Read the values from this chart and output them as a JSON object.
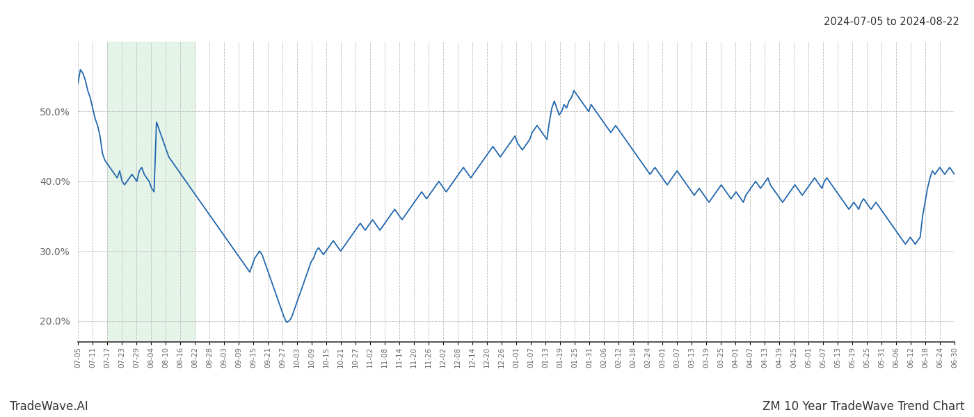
{
  "title_top_right": "2024-07-05 to 2024-08-22",
  "bottom_left": "TradeWave.AI",
  "bottom_right": "ZM 10 Year TradeWave Trend Chart",
  "line_color": "#2166ac",
  "shade_color": "#d4edda",
  "shade_alpha": 0.6,
  "ylim": [
    17.0,
    60.0
  ],
  "yticks": [
    20.0,
    30.0,
    40.0,
    50.0
  ],
  "background_color": "#ffffff",
  "grid_color": "#bbbbbb",
  "x_labels": [
    "07-05",
    "07-11",
    "07-17",
    "07-23",
    "07-29",
    "08-04",
    "08-10",
    "08-16",
    "08-22",
    "08-28",
    "09-03",
    "09-09",
    "09-15",
    "09-21",
    "09-27",
    "10-03",
    "10-09",
    "10-15",
    "10-21",
    "10-27",
    "11-02",
    "11-08",
    "11-14",
    "11-20",
    "11-26",
    "12-02",
    "12-08",
    "12-14",
    "12-20",
    "12-26",
    "01-01",
    "01-07",
    "01-13",
    "01-19",
    "01-25",
    "01-31",
    "02-06",
    "02-12",
    "02-18",
    "02-24",
    "03-01",
    "03-07",
    "03-13",
    "03-19",
    "03-25",
    "04-01",
    "04-07",
    "04-13",
    "04-19",
    "04-25",
    "05-01",
    "05-07",
    "05-13",
    "05-19",
    "05-25",
    "05-31",
    "06-06",
    "06-12",
    "06-18",
    "06-24",
    "06-30"
  ],
  "shade_start_label": "07-17",
  "shade_end_label": "08-22",
  "y_values": [
    54.0,
    56.0,
    55.5,
    54.5,
    53.0,
    52.0,
    50.5,
    49.0,
    48.0,
    46.5,
    44.0,
    43.0,
    42.5,
    42.0,
    41.5,
    41.0,
    40.5,
    41.5,
    40.0,
    39.5,
    40.0,
    40.5,
    41.0,
    40.5,
    40.0,
    41.5,
    42.0,
    41.0,
    40.5,
    40.0,
    39.0,
    38.5,
    48.5,
    47.5,
    46.5,
    45.5,
    44.5,
    43.5,
    43.0,
    42.5,
    42.0,
    41.5,
    41.0,
    40.5,
    40.0,
    39.5,
    39.0,
    38.5,
    38.0,
    37.5,
    37.0,
    36.5,
    36.0,
    35.5,
    35.0,
    34.5,
    34.0,
    33.5,
    33.0,
    32.5,
    32.0,
    31.5,
    31.0,
    30.5,
    30.0,
    29.5,
    29.0,
    28.5,
    28.0,
    27.5,
    27.0,
    28.0,
    29.0,
    29.5,
    30.0,
    29.5,
    28.5,
    27.5,
    26.5,
    25.5,
    24.5,
    23.5,
    22.5,
    21.5,
    20.5,
    19.8,
    20.0,
    20.5,
    21.5,
    22.5,
    23.5,
    24.5,
    25.5,
    26.5,
    27.5,
    28.5,
    29.0,
    30.0,
    30.5,
    30.0,
    29.5,
    30.0,
    30.5,
    31.0,
    31.5,
    31.0,
    30.5,
    30.0,
    30.5,
    31.0,
    31.5,
    32.0,
    32.5,
    33.0,
    33.5,
    34.0,
    33.5,
    33.0,
    33.5,
    34.0,
    34.5,
    34.0,
    33.5,
    33.0,
    33.5,
    34.0,
    34.5,
    35.0,
    35.5,
    36.0,
    35.5,
    35.0,
    34.5,
    35.0,
    35.5,
    36.0,
    36.5,
    37.0,
    37.5,
    38.0,
    38.5,
    38.0,
    37.5,
    38.0,
    38.5,
    39.0,
    39.5,
    40.0,
    39.5,
    39.0,
    38.5,
    39.0,
    39.5,
    40.0,
    40.5,
    41.0,
    41.5,
    42.0,
    41.5,
    41.0,
    40.5,
    41.0,
    41.5,
    42.0,
    42.5,
    43.0,
    43.5,
    44.0,
    44.5,
    45.0,
    44.5,
    44.0,
    43.5,
    44.0,
    44.5,
    45.0,
    45.5,
    46.0,
    46.5,
    45.5,
    45.0,
    44.5,
    45.0,
    45.5,
    46.0,
    47.0,
    47.5,
    48.0,
    47.5,
    47.0,
    46.5,
    46.0,
    48.5,
    50.5,
    51.5,
    50.5,
    49.5,
    50.0,
    51.0,
    50.5,
    51.5,
    52.0,
    53.0,
    52.5,
    52.0,
    51.5,
    51.0,
    50.5,
    50.0,
    51.0,
    50.5,
    50.0,
    49.5,
    49.0,
    48.5,
    48.0,
    47.5,
    47.0,
    47.5,
    48.0,
    47.5,
    47.0,
    46.5,
    46.0,
    45.5,
    45.0,
    44.5,
    44.0,
    43.5,
    43.0,
    42.5,
    42.0,
    41.5,
    41.0,
    41.5,
    42.0,
    41.5,
    41.0,
    40.5,
    40.0,
    39.5,
    40.0,
    40.5,
    41.0,
    41.5,
    41.0,
    40.5,
    40.0,
    39.5,
    39.0,
    38.5,
    38.0,
    38.5,
    39.0,
    38.5,
    38.0,
    37.5,
    37.0,
    37.5,
    38.0,
    38.5,
    39.0,
    39.5,
    39.0,
    38.5,
    38.0,
    37.5,
    38.0,
    38.5,
    38.0,
    37.5,
    37.0,
    38.0,
    38.5,
    39.0,
    39.5,
    40.0,
    39.5,
    39.0,
    39.5,
    40.0,
    40.5,
    39.5,
    39.0,
    38.5,
    38.0,
    37.5,
    37.0,
    37.5,
    38.0,
    38.5,
    39.0,
    39.5,
    39.0,
    38.5,
    38.0,
    38.5,
    39.0,
    39.5,
    40.0,
    40.5,
    40.0,
    39.5,
    39.0,
    40.0,
    40.5,
    40.0,
    39.5,
    39.0,
    38.5,
    38.0,
    37.5,
    37.0,
    36.5,
    36.0,
    36.5,
    37.0,
    36.5,
    36.0,
    37.0,
    37.5,
    37.0,
    36.5,
    36.0,
    36.5,
    37.0,
    36.5,
    36.0,
    35.5,
    35.0,
    34.5,
    34.0,
    33.5,
    33.0,
    32.5,
    32.0,
    31.5,
    31.0,
    31.5,
    32.0,
    31.5,
    31.0,
    31.5,
    32.0,
    35.0,
    37.0,
    39.0,
    40.5,
    41.5,
    41.0,
    41.5,
    42.0,
    41.5,
    41.0,
    41.5,
    42.0,
    41.5,
    41.0
  ]
}
